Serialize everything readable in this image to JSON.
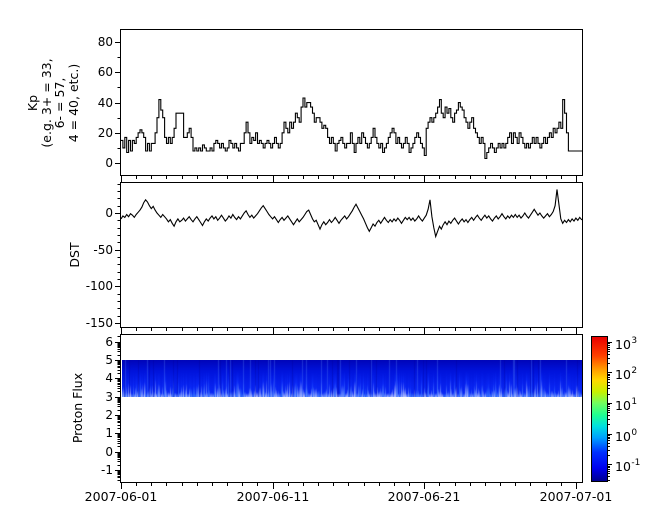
{
  "figure": {
    "background": "#ffffff",
    "axis_color": "#000000",
    "line_color": "#000000",
    "x_axis": {
      "tick_labels": [
        "2007-06-01",
        "2007-06-11",
        "2007-06-21",
        "2007-07-01"
      ],
      "major_tick_days": [
        0,
        10,
        20,
        30
      ],
      "minor_tick_interval_days": 1,
      "range_days": [
        0,
        30.4
      ]
    }
  },
  "chart_data": [
    {
      "id": "kp",
      "type": "line",
      "line_style": "steps",
      "ylabel_lines": [
        "Kp",
        "(e.g. 3+ = 33,",
        "6- = 57,",
        "4 = 40, etc.)"
      ],
      "ylim": [
        -7.9,
        88.0
      ],
      "yticks": [
        0,
        20,
        40,
        60,
        80
      ],
      "minor_ytick_interval": 10,
      "x_start_day": 0,
      "x_step_days": 0.125,
      "values": [
        15,
        10,
        17,
        7,
        15,
        8,
        15,
        13,
        17,
        20,
        22,
        20,
        17,
        8,
        13,
        8,
        13,
        13,
        20,
        30,
        42,
        35,
        30,
        17,
        13,
        17,
        13,
        17,
        23,
        33,
        33,
        33,
        33,
        17,
        17,
        20,
        23,
        17,
        8,
        10,
        8,
        10,
        8,
        12,
        10,
        8,
        8,
        10,
        8,
        13,
        15,
        13,
        10,
        13,
        10,
        8,
        10,
        15,
        13,
        10,
        13,
        10,
        8,
        13,
        13,
        20,
        27,
        20,
        13,
        17,
        15,
        20,
        13,
        15,
        13,
        10,
        13,
        15,
        13,
        10,
        13,
        17,
        13,
        10,
        13,
        20,
        27,
        23,
        20,
        27,
        23,
        27,
        33,
        30,
        27,
        37,
        43,
        37,
        40,
        40,
        37,
        33,
        27,
        30,
        30,
        27,
        23,
        25,
        23,
        17,
        13,
        17,
        13,
        8,
        13,
        15,
        17,
        13,
        10,
        13,
        13,
        20,
        13,
        7,
        13,
        17,
        13,
        20,
        17,
        13,
        10,
        13,
        17,
        23,
        17,
        13,
        10,
        13,
        7,
        10,
        13,
        17,
        20,
        23,
        20,
        13,
        17,
        13,
        10,
        13,
        17,
        13,
        7,
        10,
        13,
        17,
        20,
        17,
        13,
        10,
        5,
        23,
        27,
        30,
        27,
        30,
        33,
        37,
        42,
        33,
        30,
        37,
        33,
        36,
        30,
        27,
        33,
        35,
        40,
        37,
        35,
        30,
        27,
        23,
        27,
        30,
        23,
        20,
        17,
        13,
        17,
        13,
        3,
        7,
        10,
        13,
        10,
        7,
        10,
        13,
        10,
        13,
        10,
        13,
        17,
        20,
        13,
        20,
        17,
        13,
        20,
        17,
        13,
        10,
        13,
        10,
        13,
        17,
        13,
        17,
        13,
        10,
        13,
        17,
        13,
        17,
        20,
        17,
        23,
        20,
        23,
        27,
        23,
        42,
        33,
        20,
        8,
        8,
        8,
        8,
        8,
        8,
        8,
        8
      ]
    },
    {
      "id": "dst",
      "type": "line",
      "line_style": "straight",
      "ylabel": "DST",
      "ylim": [
        -155.5,
        40.9
      ],
      "yticks": [
        0,
        -50,
        -100,
        -150
      ],
      "minor_ytick_interval": 10,
      "x_start_day": 0,
      "x_step_days": 0.125,
      "values": [
        -8,
        -4,
        -6,
        -2,
        -5,
        -1,
        -3,
        -6,
        -2,
        1,
        4,
        8,
        14,
        18,
        15,
        10,
        6,
        9,
        4,
        0,
        -3,
        -6,
        -2,
        -5,
        -8,
        -12,
        -9,
        -14,
        -18,
        -12,
        -8,
        -12,
        -10,
        -7,
        -11,
        -8,
        -5,
        -9,
        -12,
        -8,
        -5,
        -9,
        -13,
        -17,
        -12,
        -8,
        -11,
        -7,
        -4,
        -8,
        -5,
        -10,
        -7,
        -3,
        -7,
        -11,
        -8,
        -4,
        -7,
        -2,
        -6,
        -9,
        -5,
        -8,
        -4,
        0,
        3,
        -2,
        -6,
        -3,
        -7,
        -4,
        -1,
        3,
        7,
        10,
        6,
        2,
        -2,
        -5,
        -8,
        -5,
        -9,
        -13,
        -9,
        -6,
        -10,
        -7,
        -4,
        -8,
        -12,
        -16,
        -12,
        -8,
        -12,
        -9,
        -6,
        -2,
        2,
        4,
        -2,
        -8,
        -12,
        -10,
        -16,
        -22,
        -16,
        -12,
        -16,
        -13,
        -9,
        -13,
        -10,
        -6,
        -10,
        -14,
        -10,
        -7,
        -4,
        -8,
        -5,
        -1,
        3,
        8,
        12,
        7,
        2,
        -3,
        -8,
        -14,
        -20,
        -25,
        -20,
        -15,
        -18,
        -13,
        -10,
        -14,
        -10,
        -6,
        -10,
        -13,
        -9,
        -12,
        -8,
        -11,
        -7,
        -10,
        -14,
        -10,
        -6,
        -9,
        -6,
        -10,
        -7,
        -11,
        -8,
        -4,
        -8,
        -11,
        -7,
        -3,
        5,
        18,
        -5,
        -20,
        -32,
        -25,
        -18,
        -22,
        -16,
        -12,
        -16,
        -11,
        -14,
        -10,
        -7,
        -11,
        -15,
        -11,
        -8,
        -12,
        -9,
        -13,
        -9,
        -6,
        -10,
        -6,
        -3,
        -7,
        -10,
        -6,
        -3,
        -7,
        -4,
        -8,
        -11,
        -7,
        -4,
        -8,
        -5,
        -1,
        -5,
        -8,
        -4,
        -7,
        -3,
        -6,
        -2,
        -6,
        -3,
        -7,
        -4,
        0,
        -4,
        -7,
        -3,
        1,
        5,
        1,
        -3,
        0,
        -4,
        -7,
        -4,
        -1,
        -5,
        -2,
        2,
        10,
        32,
        12,
        -8,
        -14,
        -10,
        -13,
        -9,
        -12,
        -8,
        -11,
        -7,
        -10,
        -6,
        -9
      ]
    },
    {
      "id": "proton_flux",
      "type": "heatmap",
      "ylabel": "Proton Flux",
      "ylim": [
        -1.65,
        6.37
      ],
      "yticks": [
        6,
        5,
        4,
        3,
        2,
        1,
        0,
        -1
      ],
      "y_minor_scale": "log-decades",
      "band": {
        "y_from": 3,
        "y_to": 5,
        "flux_level_range": [
          0.08,
          0.6
        ],
        "base_color": "#0013dc",
        "dark_top_color": "#0005b9",
        "light_bottom_color": "#6699ff"
      },
      "colorbar": {
        "tick_exponents": [
          3,
          2,
          1,
          0,
          -1
        ],
        "range_exponents": [
          -1.55,
          3.16
        ],
        "colormap": "jet",
        "stops": [
          [
            0,
            "#00008f"
          ],
          [
            0.09,
            "#0000f0"
          ],
          [
            0.2,
            "#0030ff"
          ],
          [
            0.3,
            "#00a0ff"
          ],
          [
            0.38,
            "#00e0e0"
          ],
          [
            0.46,
            "#20ff90"
          ],
          [
            0.54,
            "#70ff60"
          ],
          [
            0.62,
            "#c8f000"
          ],
          [
            0.7,
            "#ffd800"
          ],
          [
            0.78,
            "#ff9800"
          ],
          [
            0.87,
            "#ff4000"
          ],
          [
            1,
            "#e80000"
          ]
        ]
      }
    }
  ]
}
